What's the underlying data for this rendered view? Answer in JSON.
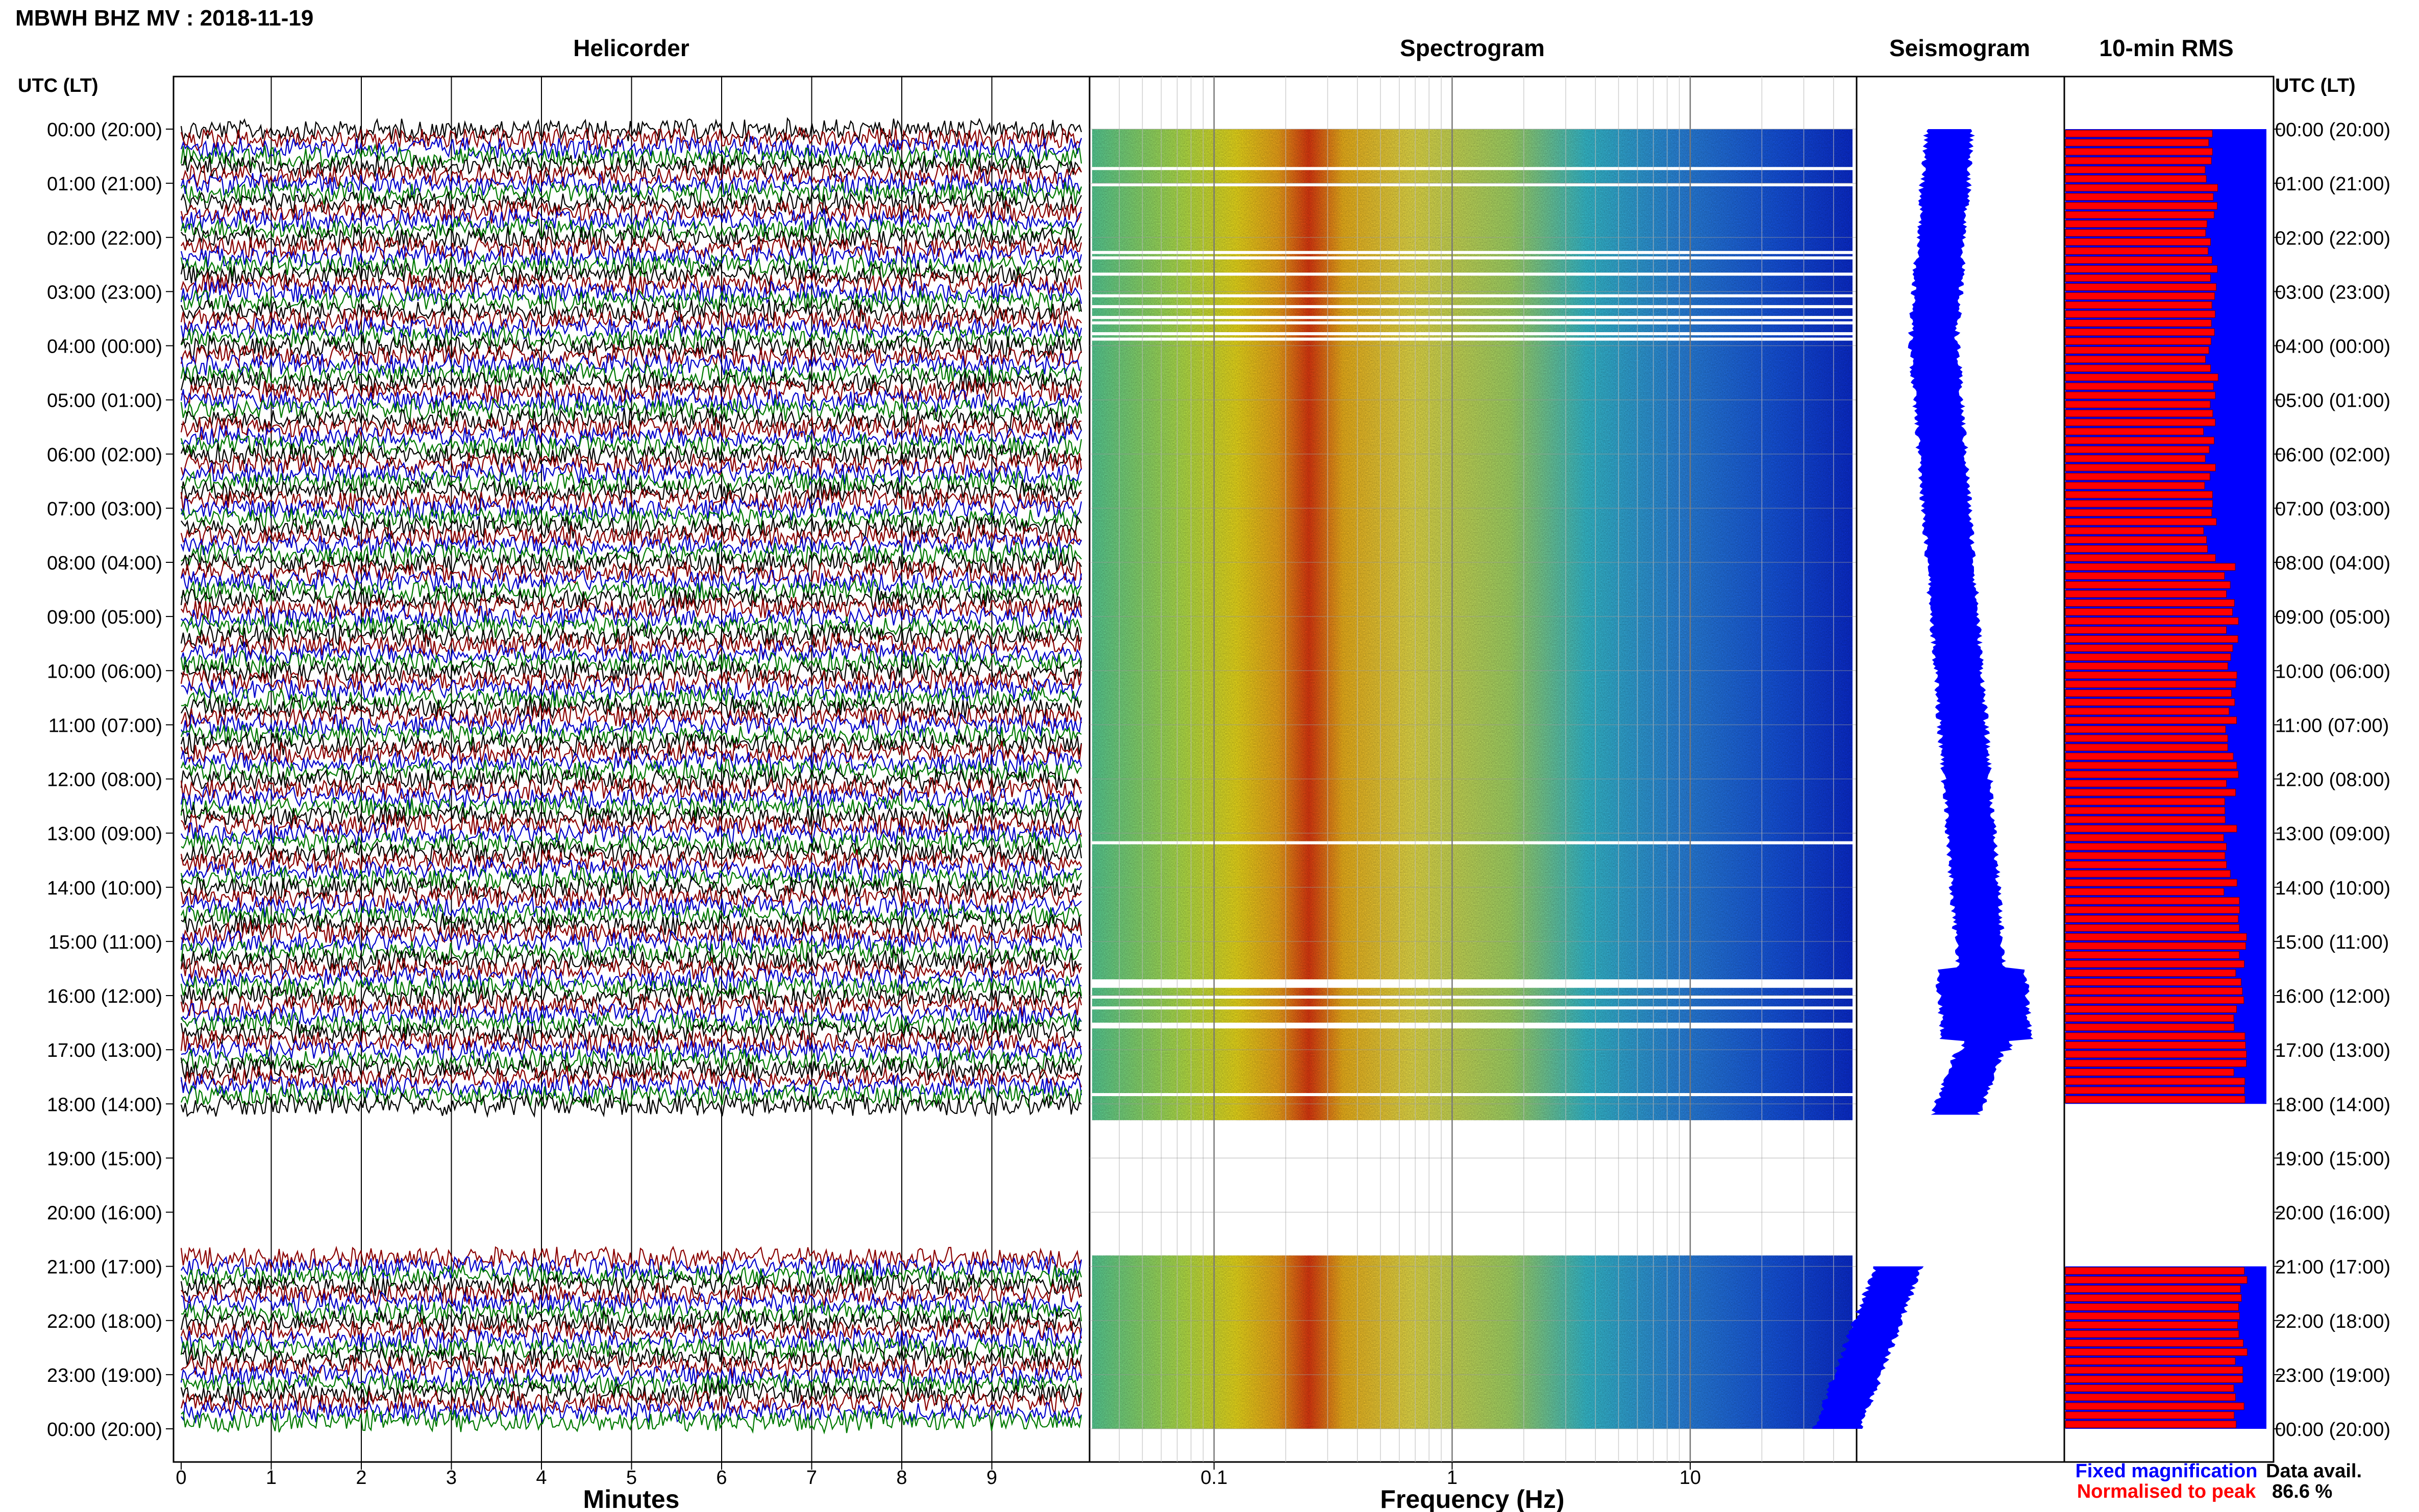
{
  "header": {
    "station_title": "MBWH BHZ MV : 2018-11-19",
    "utc_label_left": "UTC (LT)",
    "utc_label_right": "UTC (LT)"
  },
  "panel_titles": {
    "helicorder": "Helicorder",
    "spectrogram": "Spectrogram",
    "seismogram": "Seismogram",
    "rms": "10-min RMS"
  },
  "time_labels": [
    "00:00 (20:00)",
    "01:00 (21:00)",
    "02:00 (22:00)",
    "03:00 (23:00)",
    "04:00 (00:00)",
    "05:00 (01:00)",
    "06:00 (02:00)",
    "07:00 (03:00)",
    "08:00 (04:00)",
    "09:00 (05:00)",
    "10:00 (06:00)",
    "11:00 (07:00)",
    "12:00 (08:00)",
    "13:00 (09:00)",
    "14:00 (10:00)",
    "15:00 (11:00)",
    "16:00 (12:00)",
    "17:00 (13:00)",
    "18:00 (14:00)",
    "19:00 (15:00)",
    "20:00 (16:00)",
    "21:00 (17:00)",
    "22:00 (18:00)",
    "23:00 (19:00)",
    "00:00 (20:00)"
  ],
  "helicorder_axis": {
    "xlabel": "Minutes",
    "ticks": [
      "0",
      "1",
      "2",
      "3",
      "4",
      "5",
      "6",
      "7",
      "8",
      "9"
    ]
  },
  "spectrogram_axis": {
    "xlabel": "Frequency (Hz)",
    "ticks": [
      "0.1",
      "1",
      "10"
    ]
  },
  "legend": {
    "fixed": "Fixed magnification",
    "normalised": "Normalised to peak",
    "fixed_color": "#0000ff",
    "normalised_color": "#ff0000"
  },
  "data_availability": {
    "label": "Data avail.",
    "value": "86.6 %"
  },
  "colors": {
    "trace_cycle": [
      "#000000",
      "#8b0000",
      "#0000cc",
      "#007a00"
    ],
    "seismogram": "#0000ff",
    "rms_fixed": "#0000ff",
    "rms_normalised": "#ff0000"
  },
  "chart_data": [
    {
      "type": "line",
      "panel": "helicorder",
      "xlabel": "Minutes",
      "xlim": [
        0,
        10
      ],
      "lines_per_hour": 6,
      "data_gaps_utc_hours": [
        [
          18.15,
          20.8
        ]
      ]
    },
    {
      "type": "heatmap",
      "panel": "spectrogram",
      "xlabel": "Frequency (Hz)",
      "xscale": "log",
      "xlim": [
        0.03,
        50
      ],
      "ylim_utc_hours": [
        0,
        24
      ],
      "peak_band_hz": [
        0.2,
        0.3
      ],
      "data_gaps_utc_hours": [
        [
          18.3,
          20.8
        ]
      ]
    },
    {
      "type": "area",
      "panel": "seismogram",
      "ylim_utc_hours": [
        0,
        24
      ]
    },
    {
      "type": "bar",
      "panel": "10-min RMS",
      "series": [
        {
          "name": "Fixed magnification"
        },
        {
          "name": "Normalised to peak"
        }
      ],
      "ylim_utc_hours": [
        0,
        24
      ],
      "data_gaps_utc_hours": [
        [
          18.0,
          21.0
        ]
      ]
    }
  ]
}
